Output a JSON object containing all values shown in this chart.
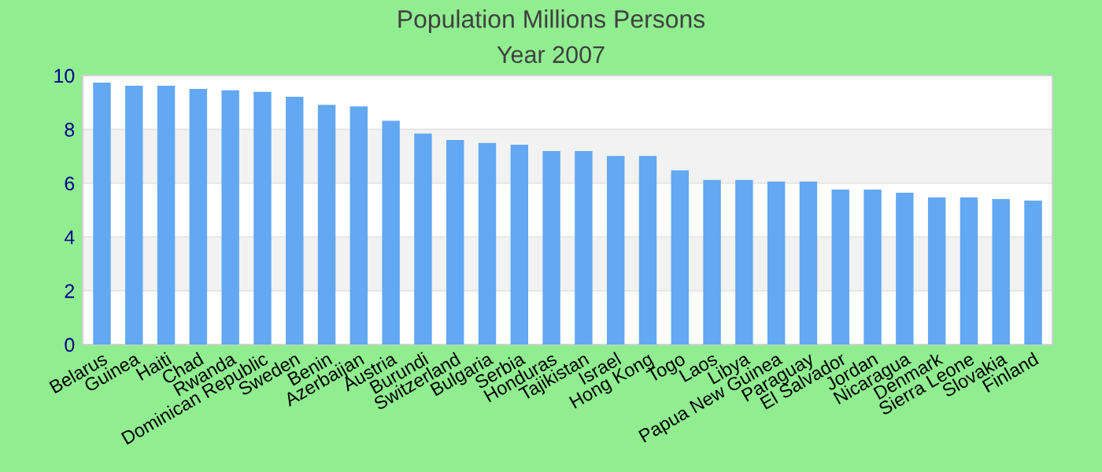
{
  "chart_data": {
    "type": "bar",
    "title": "Population Millions Persons",
    "subtitle": "Year 2007",
    "categories": [
      "Belarus",
      "Guinea",
      "Haiti",
      "Chad",
      "Rwanda",
      "Dominican Republic",
      "Sweden",
      "Benin",
      "Azerbaijan",
      "Austria",
      "Burundi",
      "Switzerland",
      "Bulgaria",
      "Serbia",
      "Honduras",
      "Tajikistan",
      "Israel",
      "Hong Kong",
      "Togo",
      "Laos",
      "Libya",
      "Papua New Guinea",
      "Paraguay",
      "El Salvador",
      "Jordan",
      "Nicaragua",
      "Denmark",
      "Sierra Leone",
      "Slovakia",
      "Finland"
    ],
    "values": [
      9.74,
      9.62,
      9.62,
      9.5,
      9.45,
      9.39,
      9.21,
      8.91,
      8.85,
      8.32,
      7.84,
      7.6,
      7.49,
      7.43,
      7.19,
      7.19,
      7.01,
      7.01,
      6.48,
      6.12,
      6.12,
      6.06,
      6.06,
      5.76,
      5.76,
      5.64,
      5.47,
      5.47,
      5.41,
      5.35
    ],
    "color": "#62a8f2",
    "ylim": [
      0,
      10
    ],
    "yticks": [
      0,
      2,
      4,
      6,
      8,
      10
    ],
    "grid": "y"
  }
}
